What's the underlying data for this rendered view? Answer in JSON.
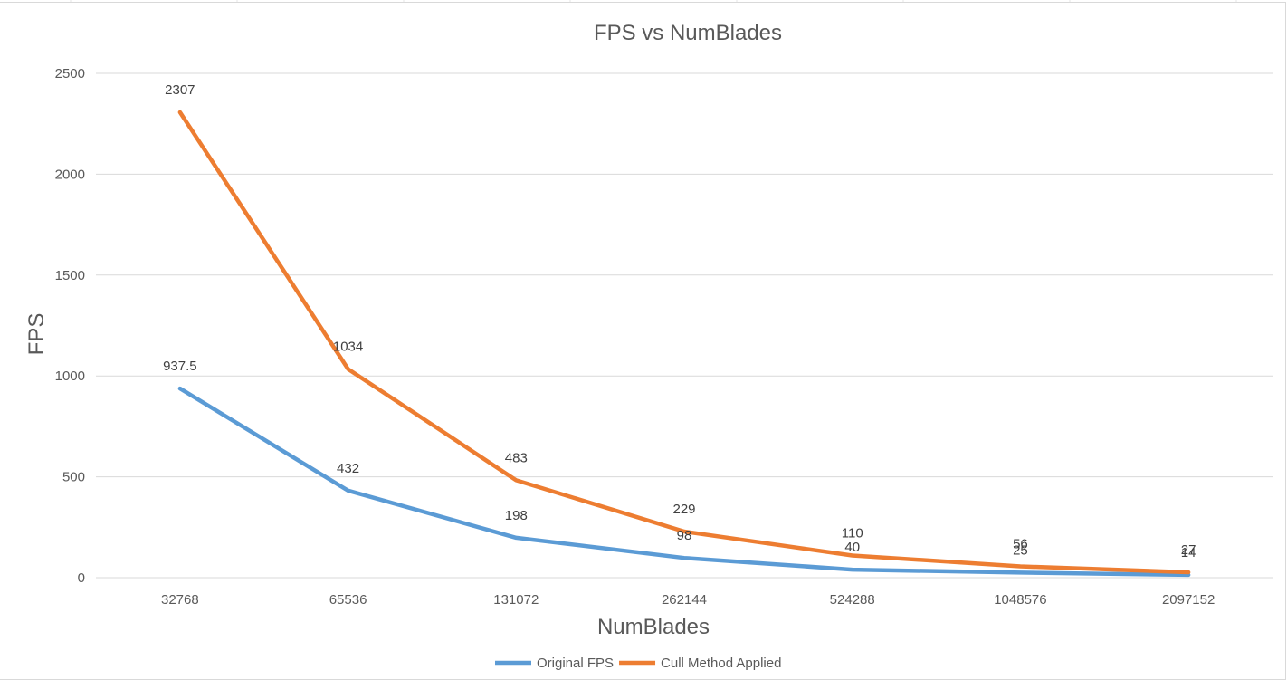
{
  "chart_data": {
    "type": "line",
    "title": "FPS vs NumBlades",
    "xlabel": "NumBlades",
    "ylabel": "FPS",
    "categories": [
      "32768",
      "65536",
      "131072",
      "262144",
      "524288",
      "1048576",
      "2097152"
    ],
    "ylim": [
      0,
      2500
    ],
    "yticks": [
      "0",
      "500",
      "1000",
      "1500",
      "2000",
      "2500"
    ],
    "grid": true,
    "legend": "bottom",
    "series": [
      {
        "name": "Original FPS",
        "color": "#5b9bd5",
        "values": [
          937.5,
          432,
          198,
          98,
          40,
          25,
          14
        ],
        "labels": [
          "937.5",
          "432",
          "198",
          "98",
          "40",
          "25",
          "14"
        ]
      },
      {
        "name": "Cull Method Applied",
        "color": "#ed7d31",
        "values": [
          2307,
          1034,
          483,
          229,
          110,
          56,
          27
        ],
        "labels": [
          "2307",
          "1034",
          "483",
          "229",
          "110",
          "56",
          "27"
        ]
      }
    ]
  }
}
